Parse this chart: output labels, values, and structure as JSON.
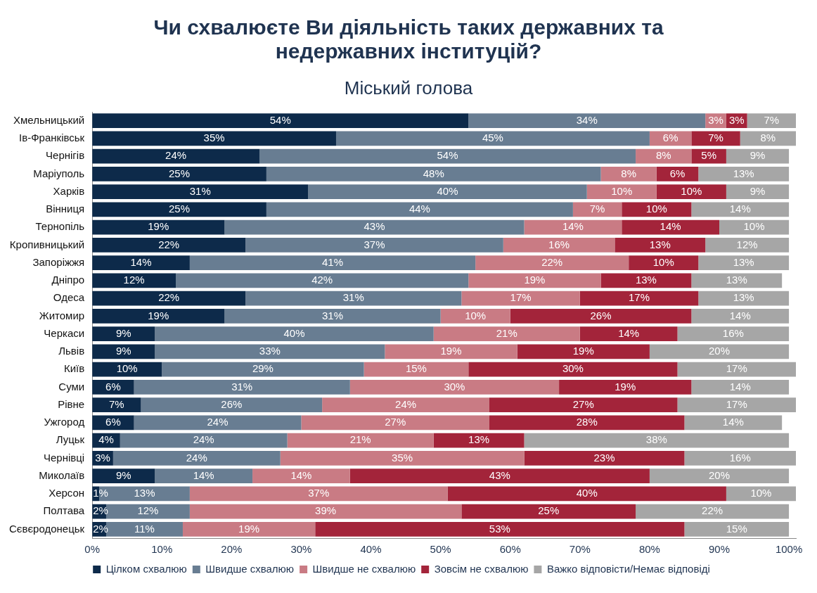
{
  "chart_data": {
    "type": "bar",
    "orientation": "horizontal",
    "stacked": true,
    "title": "Чи схвалюєте Ви діяльність таких державних та недержавних інституцій?",
    "subtitle": "Міський голова",
    "categories": [
      "Хмельницький",
      "Ів-Франківськ",
      "Чернігів",
      "Маріуполь",
      "Харків",
      "Вінниця",
      "Тернопіль",
      "Кропивницький",
      "Запоріжжя",
      "Дніпро",
      "Одеса",
      "Житомир",
      "Черкаси",
      "Львів",
      "Київ",
      "Суми",
      "Рівне",
      "Ужгород",
      "Луцьк",
      "Чернівці",
      "Миколаїв",
      "Херсон",
      "Полтава",
      "Сєвєродонецьк"
    ],
    "series": [
      {
        "name": "Цілком схвалюю",
        "color": "#0d2a4a",
        "values": [
          54,
          35,
          24,
          25,
          31,
          25,
          19,
          22,
          14,
          12,
          22,
          19,
          9,
          9,
          10,
          6,
          7,
          6,
          4,
          3,
          9,
          1,
          2,
          2
        ],
        "value_labels": [
          "54%",
          "35%",
          "24%",
          "25%",
          "31%",
          "25%",
          "19%",
          "22%",
          "14%",
          "12%",
          "22%",
          "19%",
          "9%",
          "9%",
          "10%",
          "6%",
          "7%",
          "6%",
          "4%",
          "3%",
          "9%",
          "1%",
          "2%",
          "2%"
        ]
      },
      {
        "name": "Швидше схвалюю",
        "color": "#687d92",
        "values": [
          34,
          45,
          54,
          48,
          40,
          44,
          43,
          37,
          41,
          42,
          31,
          31,
          40,
          33,
          29,
          31,
          26,
          24,
          24,
          24,
          14,
          13,
          12,
          11
        ],
        "value_labels": [
          "34%",
          "45%",
          "54%",
          "48%",
          "40%",
          "44%",
          "43%",
          "37%",
          "41%",
          "42%",
          "31%",
          "31%",
          "40%",
          "33%",
          "29%",
          "31%",
          "26%",
          "24%",
          "24%",
          "24%",
          "14%",
          "13%",
          "12%",
          "11%"
        ]
      },
      {
        "name": "Швидше не схвалюю",
        "color": "#c97b84",
        "values": [
          3,
          6,
          8,
          8,
          10,
          7,
          14,
          16,
          22,
          19,
          17,
          10,
          21,
          19,
          15,
          30,
          24,
          27,
          21,
          35,
          14,
          37,
          39,
          19
        ],
        "value_labels": [
          "3%",
          "6%",
          "8%",
          "8%",
          "10%",
          "7%",
          "14%",
          "16%",
          "22%",
          "19%",
          "17%",
          "10%",
          "21%",
          "19%",
          "15%",
          "30%",
          "24%",
          "27%",
          "21%",
          "35%",
          "14%",
          "37%",
          "39%",
          "19%"
        ]
      },
      {
        "name": "Зовсім не схвалюю",
        "color": "#a3243a",
        "values": [
          3,
          7,
          5,
          6,
          10,
          10,
          14,
          13,
          10,
          13,
          17,
          26,
          14,
          19,
          30,
          19,
          27,
          28,
          13,
          23,
          43,
          40,
          25,
          53
        ],
        "value_labels": [
          "3%",
          "7%",
          "5%",
          "6%",
          "10%",
          "10%",
          "14%",
          "13%",
          "10%",
          "13%",
          "17%",
          "26%",
          "14%",
          "19%",
          "30%",
          "19%",
          "27%",
          "28%",
          "13%",
          "23%",
          "43%",
          "40%",
          "25%",
          "53%"
        ]
      },
      {
        "name": "Важко відповісти/Немає відповіді",
        "color": "#a6a6a6",
        "values": [
          7,
          8,
          9,
          13,
          9,
          14,
          10,
          12,
          13,
          13,
          13,
          14,
          16,
          20,
          17,
          14,
          17,
          14,
          38,
          16,
          20,
          10,
          22,
          15
        ],
        "value_labels": [
          "7%",
          "8%",
          "9%",
          "13%",
          "9%",
          "14%",
          "10%",
          "12%",
          "13%",
          "13%",
          "13%",
          "14%",
          "16%",
          "20%",
          "17%",
          "14%",
          "17%",
          "14%",
          "38%",
          "16%",
          "20%",
          "10%",
          "22%",
          "15%"
        ]
      }
    ],
    "xlim": [
      0,
      101
    ],
    "xticks": [
      {
        "value": 0,
        "label": "0%"
      },
      {
        "value": 10,
        "label": "10%"
      },
      {
        "value": 20,
        "label": "20%"
      },
      {
        "value": 30,
        "label": "30%"
      },
      {
        "value": 40,
        "label": "40%"
      },
      {
        "value": 50,
        "label": "50%"
      },
      {
        "value": 60,
        "label": "60%"
      },
      {
        "value": 70,
        "label": "70%"
      },
      {
        "value": 80,
        "label": "80%"
      },
      {
        "value": 90,
        "label": "90%"
      },
      {
        "value": 100,
        "label": "100%"
      }
    ],
    "legend": "bottom",
    "grid": false
  }
}
